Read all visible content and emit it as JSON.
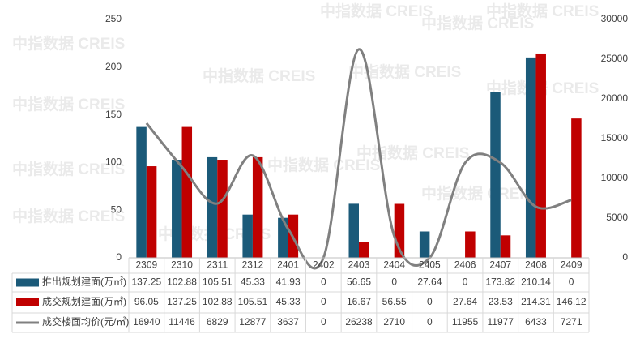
{
  "chart_data": {
    "type": "bar-line",
    "watermark": "中指数据 CREIS",
    "categories": [
      "2309",
      "2310",
      "2311",
      "2312",
      "2401",
      "2402",
      "2403",
      "2404",
      "2405",
      "2406",
      "2407",
      "2408",
      "2409"
    ],
    "series": [
      {
        "name": "推出规划建面(万㎡)",
        "type": "bar",
        "color": "#1b5a79",
        "values": [
          137.25,
          102.88,
          105.51,
          45.33,
          41.93,
          0,
          56.65,
          0,
          27.64,
          0,
          173.82,
          210.14,
          0
        ]
      },
      {
        "name": "成交规划建面(万㎡)",
        "type": "bar",
        "color": "#c00000",
        "values": [
          96.05,
          137.25,
          102.88,
          105.51,
          45.33,
          0,
          16.67,
          56.55,
          0,
          27.64,
          23.53,
          214.31,
          146.12
        ]
      },
      {
        "name": "成交楼面均价(元/㎡)",
        "type": "line",
        "axis": "y2",
        "color": "#808080",
        "values": [
          16940,
          11446,
          6829,
          12877,
          3637,
          0,
          26238,
          2710,
          0,
          11955,
          11977,
          6433,
          7271
        ]
      }
    ],
    "ylim": [
      0,
      250
    ],
    "yticks": [
      0,
      50,
      100,
      150,
      200,
      250
    ],
    "y2lim": [
      0,
      30000
    ],
    "y2ticks": [
      0,
      5000,
      10000,
      15000,
      20000,
      25000,
      30000
    ]
  }
}
